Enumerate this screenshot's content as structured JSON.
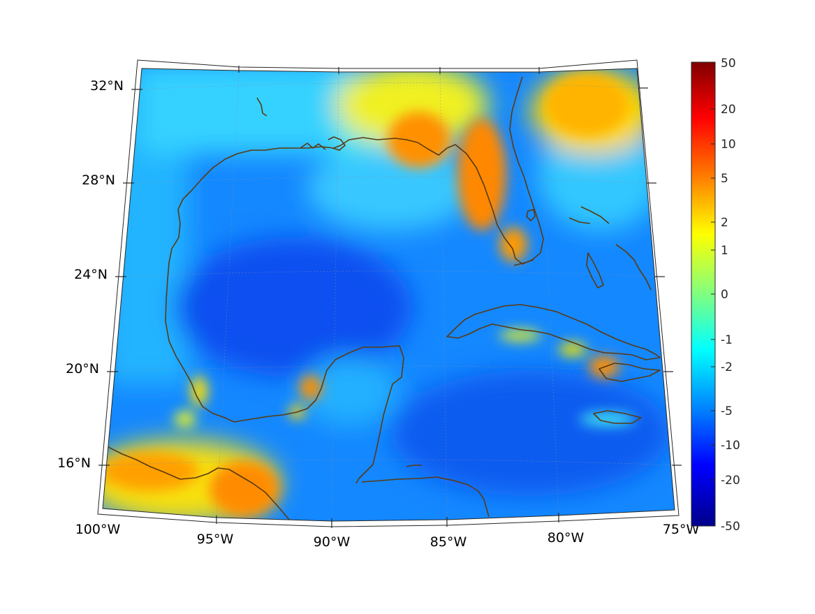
{
  "map": {
    "lat_labels": [
      "32°N",
      "28°N",
      "24°N",
      "20°N",
      "16°N"
    ],
    "lon_labels": [
      "100°W",
      "95°W",
      "90°W",
      "85°W",
      "80°W",
      "75°W"
    ],
    "coastline_color": "#5a3a12",
    "water_color": "#1e66f0"
  },
  "colorbar": {
    "tick_labels": [
      "50",
      "20",
      "10",
      "5",
      "2",
      "1",
      "0",
      "-1",
      "-2",
      "-5",
      "-10",
      "-20",
      "-50"
    ],
    "colormap": "jet",
    "top_color": "#800000",
    "bottom_color": "#00008b"
  }
}
